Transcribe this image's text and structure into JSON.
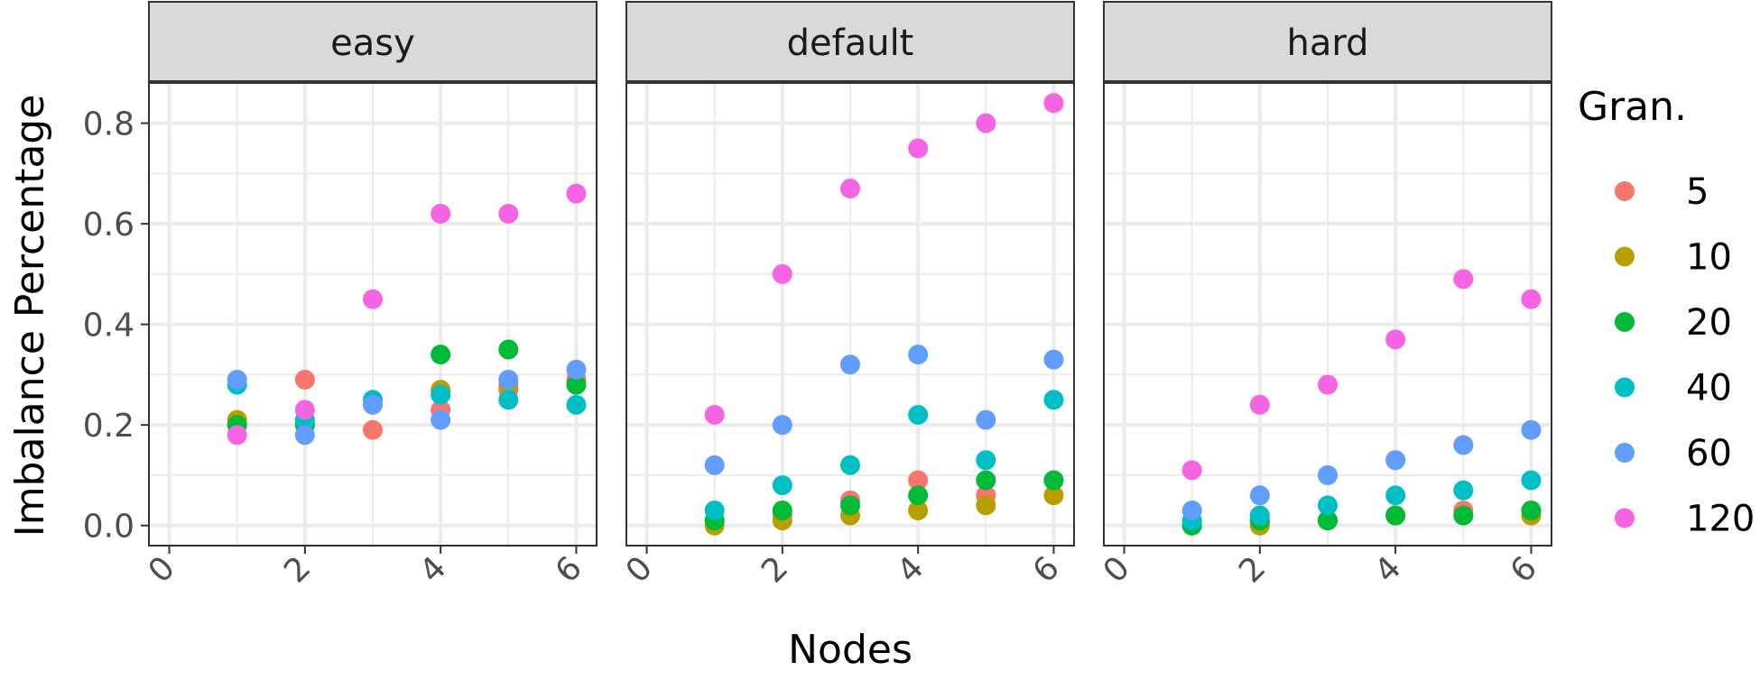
{
  "chart_data": {
    "type": "scatter",
    "facet_by": "difficulty",
    "facets": [
      {
        "label": "easy",
        "series": [
          {
            "name": "5",
            "x": [
              1,
              2,
              3,
              4,
              5,
              6
            ],
            "y": [
              0.2,
              0.29,
              0.19,
              0.23,
              0.27,
              0.29
            ]
          },
          {
            "name": "10",
            "x": [
              1,
              2,
              4,
              5,
              6
            ],
            "y": [
              0.21,
              0.2,
              0.27,
              0.28,
              0.28
            ]
          },
          {
            "name": "20",
            "x": [
              1,
              2,
              4,
              5,
              6
            ],
            "y": [
              0.2,
              0.2,
              0.34,
              0.35,
              0.28
            ]
          },
          {
            "name": "40",
            "x": [
              1,
              2,
              3,
              4,
              5,
              6
            ],
            "y": [
              0.28,
              0.21,
              0.25,
              0.26,
              0.25,
              0.24
            ]
          },
          {
            "name": "60",
            "x": [
              1,
              2,
              3,
              4,
              5,
              6
            ],
            "y": [
              0.29,
              0.18,
              0.24,
              0.21,
              0.29,
              0.31
            ]
          },
          {
            "name": "120",
            "x": [
              1,
              2,
              3,
              4,
              5,
              6
            ],
            "y": [
              0.18,
              0.23,
              0.45,
              0.62,
              0.62,
              0.66
            ]
          }
        ]
      },
      {
        "label": "default",
        "series": [
          {
            "name": "5",
            "x": [
              1,
              2,
              3,
              4,
              5,
              6
            ],
            "y": [
              0.01,
              0.02,
              0.05,
              0.09,
              0.06,
              0.09
            ]
          },
          {
            "name": "10",
            "x": [
              1,
              2,
              3,
              4,
              5,
              6
            ],
            "y": [
              0.0,
              0.01,
              0.02,
              0.03,
              0.04,
              0.06
            ]
          },
          {
            "name": "20",
            "x": [
              1,
              2,
              3,
              4,
              5,
              6
            ],
            "y": [
              0.01,
              0.03,
              0.04,
              0.06,
              0.09,
              0.09
            ]
          },
          {
            "name": "40",
            "x": [
              1,
              2,
              3,
              4,
              5,
              6
            ],
            "y": [
              0.03,
              0.08,
              0.12,
              0.22,
              0.13,
              0.25
            ]
          },
          {
            "name": "60",
            "x": [
              1,
              2,
              3,
              4,
              5,
              6
            ],
            "y": [
              0.12,
              0.2,
              0.32,
              0.34,
              0.21,
              0.33
            ]
          },
          {
            "name": "120",
            "x": [
              1,
              2,
              3,
              4,
              5,
              6
            ],
            "y": [
              0.22,
              0.5,
              0.67,
              0.75,
              0.8,
              0.84
            ]
          }
        ]
      },
      {
        "label": "hard",
        "series": [
          {
            "name": "5",
            "x": [
              1,
              2,
              3,
              4,
              5,
              6
            ],
            "y": [
              0.0,
              0.01,
              0.01,
              0.02,
              0.03,
              0.02
            ]
          },
          {
            "name": "10",
            "x": [
              1,
              2,
              3,
              4,
              5,
              6
            ],
            "y": [
              0.0,
              0.0,
              0.01,
              0.02,
              0.02,
              0.02
            ]
          },
          {
            "name": "20",
            "x": [
              1,
              2,
              3,
              4,
              5,
              6
            ],
            "y": [
              0.0,
              0.01,
              0.01,
              0.02,
              0.02,
              0.03
            ]
          },
          {
            "name": "40",
            "x": [
              1,
              2,
              3,
              4,
              5,
              6
            ],
            "y": [
              0.01,
              0.02,
              0.04,
              0.06,
              0.07,
              0.09
            ]
          },
          {
            "name": "60",
            "x": [
              1,
              2,
              3,
              4,
              5,
              6
            ],
            "y": [
              0.03,
              0.06,
              0.1,
              0.13,
              0.16,
              0.19
            ]
          },
          {
            "name": "120",
            "x": [
              1,
              2,
              3,
              4,
              5,
              6
            ],
            "y": [
              0.11,
              0.24,
              0.28,
              0.37,
              0.49,
              0.45
            ]
          }
        ]
      }
    ],
    "xlabel": "Nodes",
    "ylabel": "Imbalance Percentage",
    "xlim": [
      -0.3,
      6.3
    ],
    "ylim": [
      -0.04,
      0.88
    ],
    "x_ticks": [
      "0",
      "2",
      "4",
      "6"
    ],
    "y_ticks": [
      "0.0",
      "0.2",
      "0.4",
      "0.6",
      "0.8"
    ],
    "legend": {
      "title": "Gran.",
      "position": "right",
      "entries": [
        "5",
        "10",
        "20",
        "40",
        "60",
        "120"
      ]
    },
    "colors": {
      "5": "#F8766D",
      "10": "#B79F00",
      "20": "#00BA38",
      "40": "#00BFC4",
      "60": "#619CFF",
      "120": "#F564E3"
    },
    "grid": true,
    "theme": "bw"
  }
}
